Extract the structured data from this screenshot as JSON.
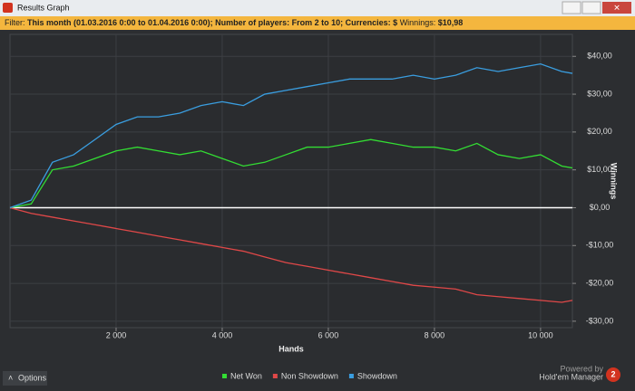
{
  "ui": {
    "window_title": "Results Graph",
    "filter_label": "Filter:",
    "filter_text": "This month (01.03.2016 0:00 to 01.04.2016 0:00); Number of players: From 2 to 10; Currencies: $",
    "winnings_label": "Winnings:",
    "winnings_value": "$10,98",
    "options": "Options",
    "powered_by": "Powered by",
    "brand": "Hold'em Manager",
    "brand_badge": "2"
  },
  "chart_data": {
    "type": "line",
    "x_label": "Hands",
    "y_label": "Winnings",
    "x": [
      0,
      400,
      800,
      1200,
      1600,
      2000,
      2400,
      2800,
      3200,
      3600,
      4000,
      4400,
      4800,
      5200,
      5600,
      6000,
      6400,
      6800,
      7200,
      7600,
      8000,
      8400,
      8800,
      9200,
      9600,
      10000,
      10400,
      10600
    ],
    "series": [
      {
        "name": "Net Won",
        "color": "#33dd33",
        "values": [
          0,
          1,
          10,
          11,
          13,
          15,
          16,
          15,
          14,
          15,
          13,
          11,
          12,
          14,
          16,
          16,
          17,
          18,
          17,
          16,
          16,
          15,
          17,
          14,
          13,
          14,
          11,
          10.5
        ]
      },
      {
        "name": "Non Showdown",
        "color": "#e04848",
        "values": [
          0,
          -1.5,
          -2.5,
          -3.5,
          -4.5,
          -5.5,
          -6.5,
          -7.5,
          -8.5,
          -9.5,
          -10.5,
          -11.5,
          -13,
          -14.5,
          -15.5,
          -16.5,
          -17.5,
          -18.5,
          -19.5,
          -20.5,
          -21,
          -21.5,
          -23,
          -23.5,
          -24,
          -24.5,
          -25,
          -24.5
        ]
      },
      {
        "name": "Showdown",
        "color": "#3a9ee0",
        "values": [
          0,
          2,
          12,
          14,
          18,
          22,
          24,
          24,
          25,
          27,
          28,
          27,
          30,
          31,
          32,
          33,
          34,
          34,
          34,
          35,
          34,
          35,
          37,
          36,
          37,
          38,
          36,
          35.5
        ]
      }
    ],
    "xlim": [
      0,
      10600
    ],
    "ylim": [
      -31.7,
      45.8
    ],
    "xticks": [
      {
        "value": 2000,
        "label": "2 000"
      },
      {
        "value": 4000,
        "label": "4 000"
      },
      {
        "value": 6000,
        "label": "6 000"
      },
      {
        "value": 8000,
        "label": "8 000"
      },
      {
        "value": 10000,
        "label": "10 000"
      }
    ],
    "yticks": [
      {
        "value": -30,
        "label": "-$30,00"
      },
      {
        "value": -20,
        "label": "-$20,00"
      },
      {
        "value": -10,
        "label": "-$10,00"
      },
      {
        "value": 0,
        "label": "$0,00"
      },
      {
        "value": 10,
        "label": "$10,00"
      },
      {
        "value": 20,
        "label": "$20,00"
      },
      {
        "value": 30,
        "label": "$30,00"
      },
      {
        "value": 40,
        "label": "$40,00"
      }
    ],
    "grid": true
  }
}
